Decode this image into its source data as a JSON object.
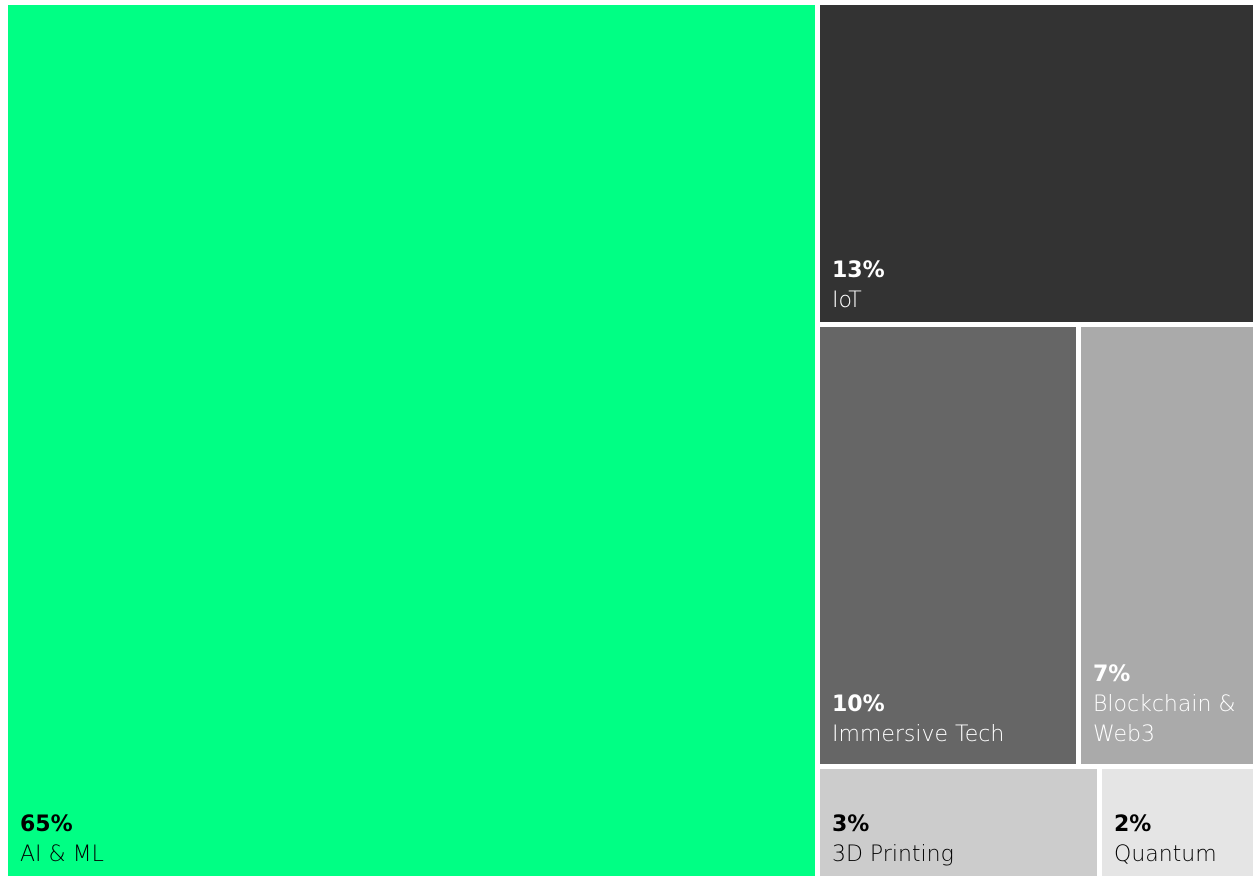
{
  "chart_data": {
    "type": "treemap",
    "items": [
      {
        "name": "AI & ML",
        "value": 65,
        "label": "65%",
        "color": "#00ff84",
        "text_color": "#000000"
      },
      {
        "name": "IoT",
        "value": 13,
        "label": "13%",
        "color": "#333333",
        "text_color": "#ffffff"
      },
      {
        "name": "Immersive Tech",
        "value": 10,
        "label": "10%",
        "color": "#666666",
        "text_color": "#ffffff"
      },
      {
        "name": "Blockchain & Web3",
        "value": 7,
        "label": "7%",
        "color": "#aaaaaa",
        "text_color": "#ffffff"
      },
      {
        "name": "3D Printing",
        "value": 3,
        "label": "3%",
        "color": "#cccccc",
        "text_color": "#000000"
      },
      {
        "name": "Quantum",
        "value": 2,
        "label": "2%",
        "color": "#e5e5e5",
        "text_color": "#000000"
      }
    ]
  }
}
